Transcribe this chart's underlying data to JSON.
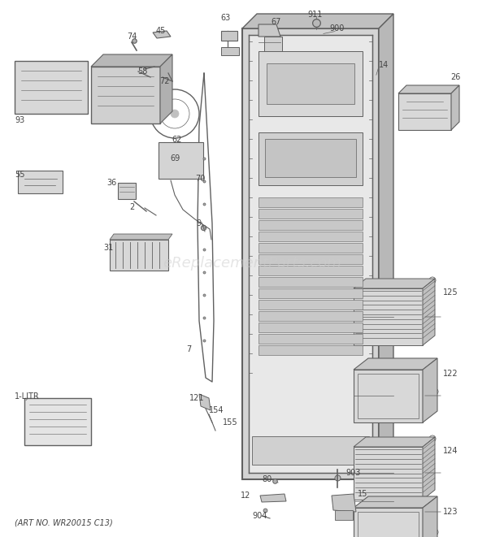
{
  "bg_color": "#ffffff",
  "line_color": "#606060",
  "text_color": "#444444",
  "watermark": "eReplacementParts.com",
  "footer": "(ART NO. WR20015 C13)",
  "fig_w": 6.2,
  "fig_h": 6.61,
  "dpi": 100
}
